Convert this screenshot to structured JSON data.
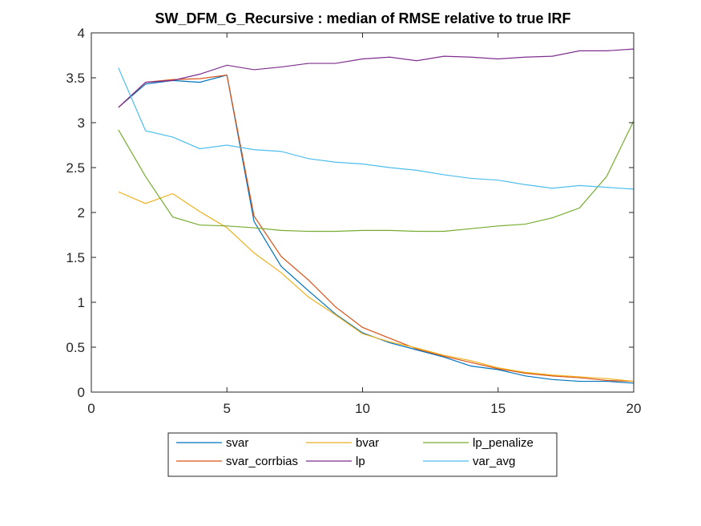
{
  "chart_data": {
    "type": "line",
    "title": "SW_DFM_G_Recursive : median of RMSE relative to true IRF",
    "xlabel": "",
    "ylabel": "",
    "xlim": [
      0,
      20
    ],
    "ylim": [
      0,
      4
    ],
    "xticks": [
      "0",
      "5",
      "10",
      "15",
      "20"
    ],
    "yticks": [
      "0",
      "0.5",
      "1",
      "1.5",
      "2",
      "2.5",
      "3",
      "3.5",
      "4"
    ],
    "x": [
      1,
      2,
      3,
      4,
      5,
      6,
      7,
      8,
      9,
      10,
      11,
      12,
      13,
      14,
      15,
      16,
      17,
      18,
      19,
      20
    ],
    "grid": false,
    "legend_position": "bottom-outside",
    "series": [
      {
        "name": "svar",
        "color": "#0072BD",
        "values": [
          3.17,
          3.43,
          3.47,
          3.45,
          3.53,
          1.9,
          1.4,
          1.13,
          0.87,
          0.66,
          0.55,
          0.47,
          0.39,
          0.29,
          0.25,
          0.18,
          0.14,
          0.12,
          0.12,
          0.1
        ]
      },
      {
        "name": "svar_corrbias",
        "color": "#D95319",
        "values": [
          3.17,
          3.45,
          3.48,
          3.49,
          3.53,
          1.96,
          1.51,
          1.25,
          0.95,
          0.72,
          0.6,
          0.48,
          0.4,
          0.33,
          0.26,
          0.21,
          0.18,
          0.16,
          0.13,
          0.12
        ]
      },
      {
        "name": "bvar",
        "color": "#EDB120",
        "values": [
          2.23,
          2.1,
          2.21,
          2.01,
          1.83,
          1.55,
          1.33,
          1.06,
          0.86,
          0.65,
          0.56,
          0.49,
          0.41,
          0.35,
          0.27,
          0.22,
          0.19,
          0.17,
          0.15,
          0.12
        ]
      },
      {
        "name": "lp",
        "color": "#7E2F8E",
        "values": [
          3.17,
          3.45,
          3.47,
          3.54,
          3.64,
          3.59,
          3.62,
          3.66,
          3.66,
          3.71,
          3.73,
          3.69,
          3.74,
          3.73,
          3.71,
          3.73,
          3.74,
          3.8,
          3.8,
          3.82
        ]
      },
      {
        "name": "lp_penalize",
        "color": "#77AC30",
        "values": [
          2.92,
          2.4,
          1.95,
          1.86,
          1.85,
          1.83,
          1.8,
          1.79,
          1.79,
          1.8,
          1.8,
          1.79,
          1.79,
          1.82,
          1.85,
          1.87,
          1.94,
          2.05,
          2.4,
          3.02
        ]
      },
      {
        "name": "var_avg",
        "color": "#4DBEEE",
        "values": [
          3.61,
          2.91,
          2.84,
          2.71,
          2.75,
          2.7,
          2.68,
          2.6,
          2.56,
          2.54,
          2.5,
          2.47,
          2.42,
          2.38,
          2.36,
          2.31,
          2.27,
          2.3,
          2.28,
          2.26
        ]
      }
    ],
    "legend_layout": [
      [
        "svar",
        "bvar",
        "lp_penalize"
      ],
      [
        "svar_corrbias",
        "lp",
        "var_avg"
      ]
    ]
  }
}
